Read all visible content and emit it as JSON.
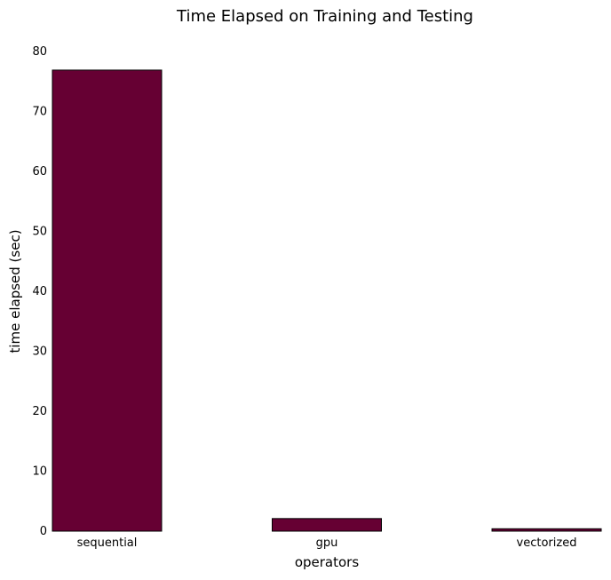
{
  "chart_data": {
    "type": "bar",
    "title": "Time Elapsed on Training and Testing",
    "xlabel": "operators",
    "ylabel": "time elapsed (sec)",
    "categories": [
      "sequential",
      "gpu",
      "vectorized"
    ],
    "values": [
      76.9,
      2.1,
      0.4
    ],
    "ylim": [
      0,
      80
    ],
    "yticks": [
      0,
      10,
      20,
      30,
      40,
      50,
      60,
      70,
      80
    ],
    "grid": false,
    "legend": "none",
    "colors": {
      "bar_fill": "#660033",
      "bar_edge": "#000000"
    }
  }
}
